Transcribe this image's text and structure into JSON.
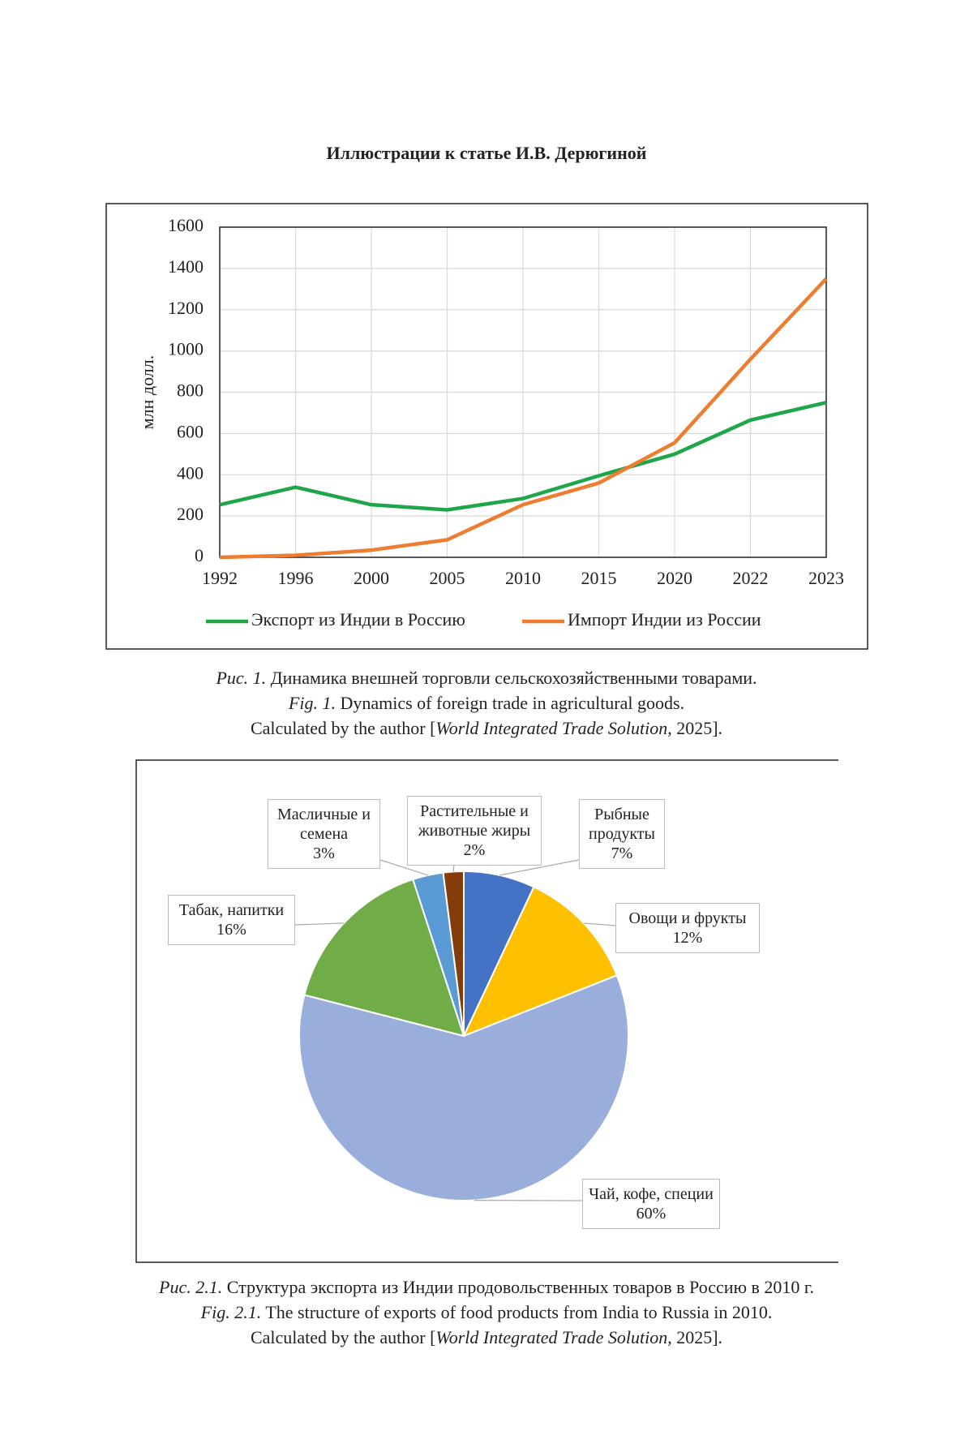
{
  "header": {
    "title": "Иллюстрации к статье И.В. Дерюгиной"
  },
  "chart_data": [
    {
      "type": "line",
      "y_label": "млн долл.",
      "categories": [
        "1992",
        "1996",
        "2000",
        "2005",
        "2010",
        "2015",
        "2020",
        "2022",
        "2023"
      ],
      "series": [
        {
          "name": "Экспорт из Индии в Россию",
          "color": "#1fa64a",
          "values": [
            255,
            340,
            255,
            230,
            285,
            395,
            500,
            665,
            750
          ]
        },
        {
          "name": "Импорт Индии из России",
          "color": "#ed7d31",
          "values": [
            0,
            10,
            35,
            85,
            255,
            360,
            555,
            960,
            1350
          ]
        }
      ],
      "ylim": [
        0,
        1600
      ],
      "yticks": [
        0,
        200,
        400,
        600,
        800,
        1000,
        1200,
        1400,
        1600
      ],
      "grid": true,
      "legend": "bottom"
    },
    {
      "type": "pie",
      "categories": [
        "Рыбные продукты",
        "Овощи и фрукты",
        "Чай, кофе, специи",
        "Табак, напитки",
        "Масличные и семена",
        "Растительные и животные жиры"
      ],
      "values": [
        7,
        12,
        60,
        16,
        3,
        2
      ],
      "value_labels": [
        "7%",
        "12%",
        "60%",
        "16%",
        "3%",
        "2%"
      ],
      "colors": [
        "#4472c4",
        "#ffc000",
        "#9aaedb",
        "#70ad47",
        "#5b9bd5",
        "#843c0c"
      ]
    }
  ],
  "captions": [
    {
      "ru_label": "Рис. 1.",
      "ru_text": "Динамика внешней торговли сельскохозяйственными товарами.",
      "en_label": "Fig. 1.",
      "en_text": "Dynamics of foreign trade in agricultural goods.",
      "source_pre": "Calculated by the author [",
      "source_ref": "World Integrated Trade Solution",
      "source_post": ", 2025]."
    },
    {
      "ru_label": "Рис. 2.1.",
      "ru_text": "Структура экспорта из Индии продовольственных товаров в Россию в 2010 г.",
      "en_label": "Fig. 2.1.",
      "en_text": "The structure of exports of food products from India to Russia in 2010.",
      "source_pre": "Calculated by the author [",
      "source_ref": "World Integrated Trade Solution",
      "source_post": ", 2025]."
    }
  ]
}
